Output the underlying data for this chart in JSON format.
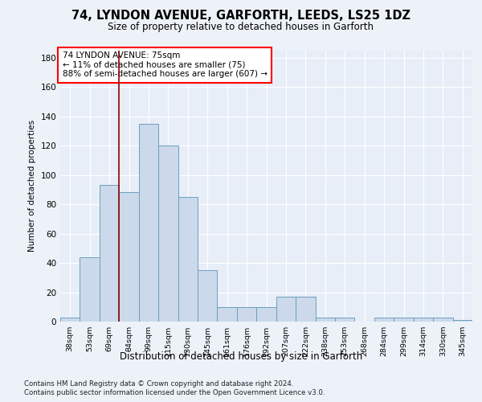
{
  "title1": "74, LYNDON AVENUE, GARFORTH, LEEDS, LS25 1DZ",
  "title2": "Size of property relative to detached houses in Garforth",
  "xlabel": "Distribution of detached houses by size in Garforth",
  "ylabel": "Number of detached properties",
  "categories": [
    "38sqm",
    "53sqm",
    "69sqm",
    "84sqm",
    "99sqm",
    "115sqm",
    "130sqm",
    "145sqm",
    "161sqm",
    "176sqm",
    "192sqm",
    "207sqm",
    "222sqm",
    "238sqm",
    "253sqm",
    "268sqm",
    "284sqm",
    "299sqm",
    "314sqm",
    "330sqm",
    "345sqm"
  ],
  "values": [
    3,
    44,
    93,
    88,
    135,
    120,
    85,
    35,
    10,
    10,
    10,
    17,
    17,
    3,
    3,
    0,
    3,
    3,
    3,
    3,
    1
  ],
  "bar_color": "#ccd9ea",
  "bar_edge_color": "#6a9fc0",
  "redline_x": 2.5,
  "annotation_text": "74 LYNDON AVENUE: 75sqm\n← 11% of detached houses are smaller (75)\n88% of semi-detached houses are larger (607) →",
  "annotation_box_color": "white",
  "annotation_box_edge": "red",
  "ylim": [
    0,
    185
  ],
  "yticks": [
    0,
    20,
    40,
    60,
    80,
    100,
    120,
    140,
    160,
    180
  ],
  "footer_line1": "Contains HM Land Registry data © Crown copyright and database right 2024.",
  "footer_line2": "Contains public sector information licensed under the Open Government Licence v3.0.",
  "bg_color": "#edf2f9",
  "plot_bg_color": "#e8eef8"
}
